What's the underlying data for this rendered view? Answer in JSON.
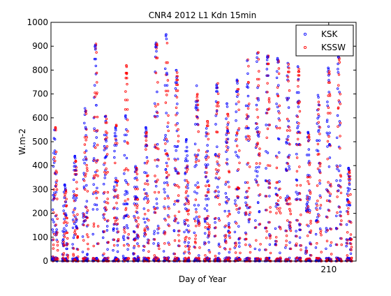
{
  "chart_data": {
    "type": "scatter",
    "title": "CNR4 2012 L1 Kdn 15min",
    "xlabel": "Day of Year",
    "ylabel": "W.m-2",
    "ylim": [
      0,
      1000
    ],
    "yticks": [
      0,
      100,
      200,
      300,
      400,
      500,
      600,
      700,
      800,
      900,
      1000
    ],
    "xticks": [
      210
    ],
    "xlim": [
      182.6,
      212.7
    ],
    "grid": false,
    "legend_position": "top-right",
    "marker": "dot",
    "series": [
      {
        "name": "KSK",
        "color": "#0000ff"
      },
      {
        "name": "KSSW",
        "color": "#ff0000"
      }
    ],
    "daily_peaks": [
      {
        "day": 183,
        "ksk": 550,
        "kssw": 560
      },
      {
        "day": 184,
        "ksk": 320,
        "kssw": 300
      },
      {
        "day": 185,
        "ksk": 440,
        "kssw": 420
      },
      {
        "day": 186,
        "ksk": 640,
        "kssw": 630
      },
      {
        "day": 187,
        "ksk": 905,
        "kssw": 910
      },
      {
        "day": 188,
        "ksk": 610,
        "kssw": 620
      },
      {
        "day": 189,
        "ksk": 560,
        "kssw": 570
      },
      {
        "day": 190,
        "ksk": 610,
        "kssw": 820
      },
      {
        "day": 191,
        "ksk": 400,
        "kssw": 390
      },
      {
        "day": 192,
        "ksk": 560,
        "kssw": 540
      },
      {
        "day": 193,
        "ksk": 915,
        "kssw": 910
      },
      {
        "day": 194,
        "ksk": 950,
        "kssw": 920
      },
      {
        "day": 195,
        "ksk": 800,
        "kssw": 790
      },
      {
        "day": 196,
        "ksk": 510,
        "kssw": 400
      },
      {
        "day": 197,
        "ksk": 740,
        "kssw": 700
      },
      {
        "day": 198,
        "ksk": 560,
        "kssw": 590
      },
      {
        "day": 199,
        "ksk": 740,
        "kssw": 750
      },
      {
        "day": 200,
        "ksk": 660,
        "kssw": 620
      },
      {
        "day": 201,
        "ksk": 760,
        "kssw": 770
      },
      {
        "day": 202,
        "ksk": 840,
        "kssw": 850
      },
      {
        "day": 203,
        "ksk": 870,
        "kssw": 880
      },
      {
        "day": 204,
        "ksk": 860,
        "kssw": 860
      },
      {
        "day": 205,
        "ksk": 850,
        "kssw": 840
      },
      {
        "day": 206,
        "ksk": 830,
        "kssw": 825
      },
      {
        "day": 207,
        "ksk": 815,
        "kssw": 810
      },
      {
        "day": 208,
        "ksk": 540,
        "kssw": 530
      },
      {
        "day": 209,
        "ksk": 700,
        "kssw": 680
      },
      {
        "day": 210,
        "ksk": 810,
        "kssw": 800
      },
      {
        "day": 211,
        "ksk": 860,
        "kssw": 850
      },
      {
        "day": 212,
        "ksk": 390,
        "kssw": 380
      }
    ]
  }
}
